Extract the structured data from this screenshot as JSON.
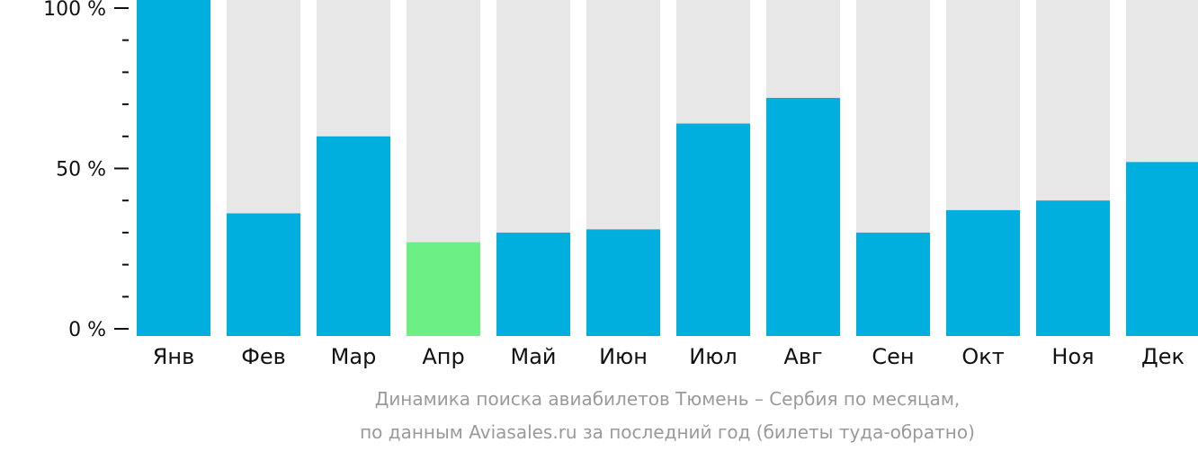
{
  "chart_data": {
    "type": "bar",
    "categories": [
      "Янв",
      "Фев",
      "Мар",
      "Апр",
      "Май",
      "Июн",
      "Июл",
      "Авг",
      "Сен",
      "Окт",
      "Ноя",
      "Дек"
    ],
    "values": [
      100,
      36,
      60,
      27,
      30,
      31,
      64,
      72,
      30,
      37,
      40,
      52
    ],
    "highlight_index": 3,
    "ylim": [
      0,
      100
    ],
    "yticks": [
      {
        "value": 100,
        "label": "100 %"
      },
      {
        "value": 50,
        "label": "50 %"
      },
      {
        "value": 0,
        "label": "0 %"
      }
    ],
    "minor_ticks": [
      10,
      20,
      30,
      40,
      60,
      70,
      80,
      90
    ],
    "grid": false,
    "caption": {
      "line1": "Динамика поиска авиабилетов Тюмень – Сербия по месяцам,",
      "line2": "по данным Aviasales.ru за последний год (билеты туда-обратно)"
    },
    "colors": {
      "bar": "#00afdd",
      "highlight": "#6cf084",
      "track": "#e7e7e7",
      "axis": "#111111"
    }
  }
}
